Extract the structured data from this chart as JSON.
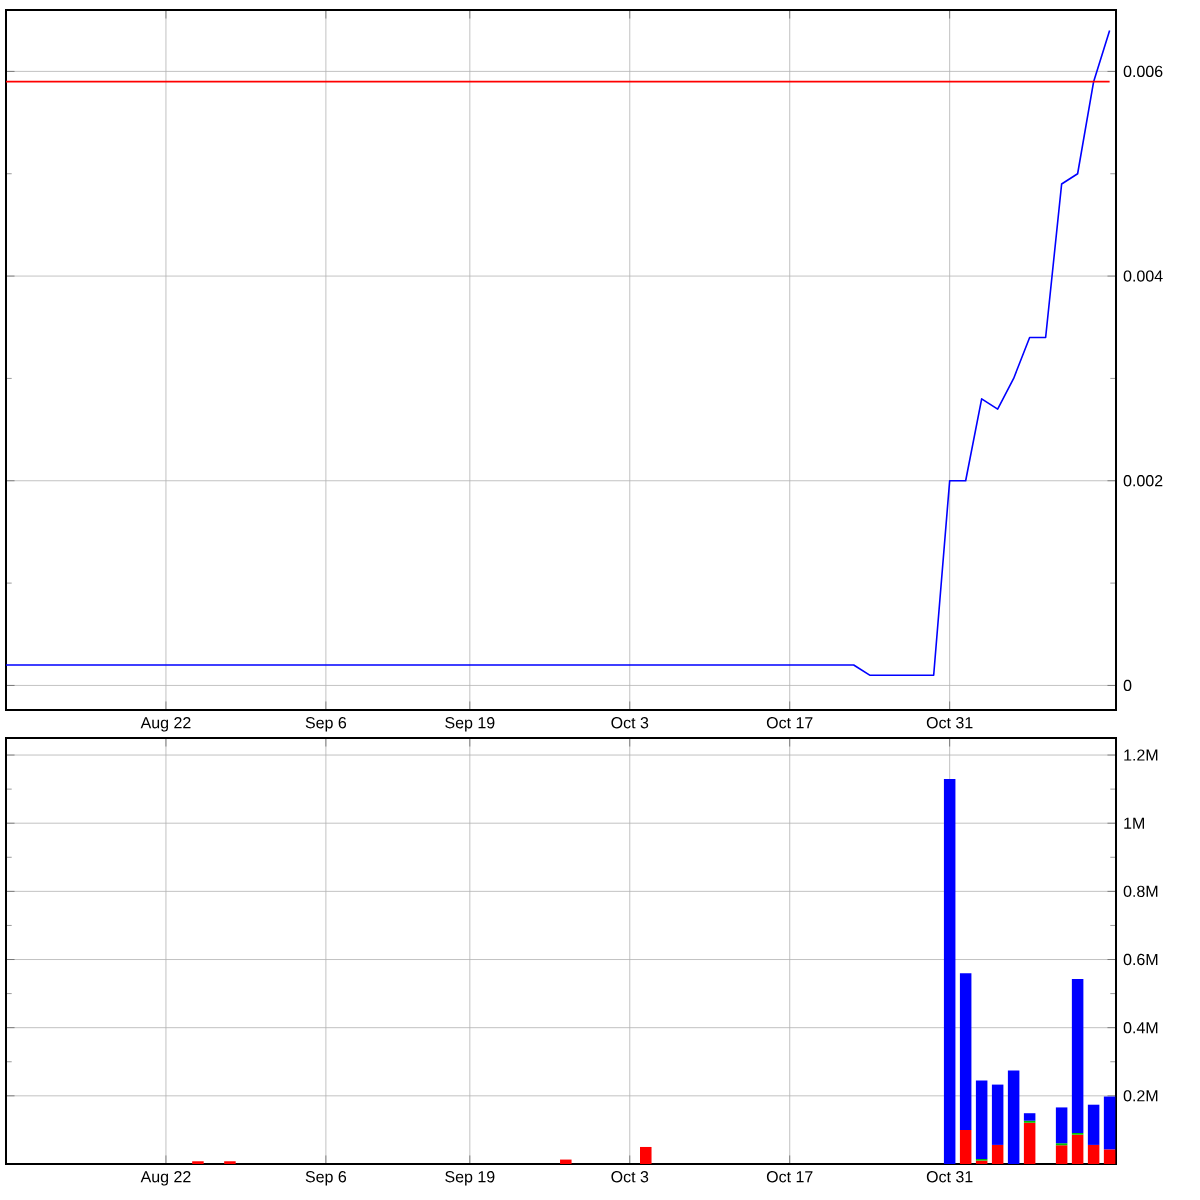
{
  "chart_data": [
    {
      "type": "line",
      "categories": [
        null,
        null,
        null,
        null,
        null,
        null,
        null,
        null,
        null,
        null,
        "Aug 22",
        null,
        null,
        null,
        null,
        null,
        null,
        null,
        null,
        null,
        "Sep 6",
        null,
        null,
        null,
        null,
        null,
        null,
        null,
        null,
        "Sep 19",
        null,
        null,
        null,
        null,
        null,
        null,
        null,
        null,
        null,
        "Oct 3",
        null,
        null,
        null,
        null,
        null,
        null,
        null,
        null,
        null,
        "Oct 17",
        null,
        null,
        null,
        null,
        null,
        null,
        null,
        null,
        null,
        "Oct 31",
        null,
        null,
        null,
        null,
        null,
        null,
        null,
        null,
        null,
        null
      ],
      "series": [
        {
          "color": "#0000ff",
          "values": [
            0.0002,
            0.0002,
            0.0002,
            0.0002,
            0.0002,
            0.0002,
            0.0002,
            0.0002,
            0.0002,
            0.0002,
            0.0002,
            0.0002,
            0.0002,
            0.0002,
            0.0002,
            0.0002,
            0.0002,
            0.0002,
            0.0002,
            0.0002,
            0.0002,
            0.0002,
            0.0002,
            0.0002,
            0.0002,
            0.0002,
            0.0002,
            0.0002,
            0.0002,
            0.0002,
            0.0002,
            0.0002,
            0.0002,
            0.0002,
            0.0002,
            0.0002,
            0.0002,
            0.0002,
            0.0002,
            0.0002,
            0.0002,
            0.0002,
            0.0002,
            0.0002,
            0.0002,
            0.0002,
            0.0002,
            0.0002,
            0.0002,
            0.0002,
            0.0002,
            0.0002,
            0.0002,
            0.0002,
            0.0001,
            0.0001,
            0.0001,
            0.0001,
            0.0001,
            0.002,
            0.002,
            0.0028,
            0.0027,
            0.003,
            0.0034,
            0.0034,
            0.0049,
            0.005,
            0.0059,
            0.0064
          ]
        }
      ],
      "ylim": [
        -0.00024,
        0.0066
      ],
      "yticks": [
        0,
        0.002,
        0.004,
        0.006
      ],
      "grid": true,
      "ref_lines": [
        {
          "axis": "y",
          "value": 0.0059,
          "color": "#ff0000"
        }
      ]
    },
    {
      "type": "bar",
      "stacked": true,
      "categories": [
        null,
        null,
        null,
        null,
        null,
        null,
        null,
        null,
        null,
        null,
        "Aug 22",
        null,
        null,
        null,
        null,
        null,
        null,
        null,
        null,
        null,
        "Sep 6",
        null,
        null,
        null,
        null,
        null,
        null,
        null,
        null,
        "Sep 19",
        null,
        null,
        null,
        null,
        null,
        null,
        null,
        null,
        null,
        "Oct 3",
        null,
        null,
        null,
        null,
        null,
        null,
        null,
        null,
        null,
        "Oct 17",
        null,
        null,
        null,
        null,
        null,
        null,
        null,
        null,
        null,
        "Oct 31",
        null,
        null,
        null,
        null,
        null,
        null,
        null,
        null,
        null,
        null
      ],
      "series": [
        {
          "color": "#ff0000",
          "values": [
            null,
            null,
            null,
            null,
            null,
            null,
            null,
            null,
            null,
            null,
            null,
            null,
            8000,
            null,
            8000,
            null,
            null,
            null,
            null,
            null,
            null,
            null,
            null,
            null,
            null,
            null,
            null,
            null,
            null,
            null,
            null,
            null,
            null,
            null,
            null,
            13000,
            null,
            null,
            null,
            null,
            50000,
            null,
            null,
            null,
            null,
            null,
            null,
            null,
            null,
            null,
            null,
            null,
            null,
            null,
            null,
            null,
            null,
            null,
            null,
            null,
            100000,
            10000,
            56000,
            null,
            121000,
            null,
            55000,
            86000,
            56000,
            43000
          ]
        },
        {
          "color": "#00c000",
          "values": [
            null,
            null,
            null,
            null,
            null,
            null,
            null,
            null,
            null,
            null,
            null,
            null,
            null,
            null,
            null,
            null,
            null,
            null,
            null,
            null,
            null,
            null,
            null,
            null,
            null,
            null,
            null,
            null,
            null,
            null,
            null,
            null,
            null,
            null,
            null,
            null,
            null,
            null,
            null,
            null,
            null,
            null,
            null,
            null,
            null,
            null,
            null,
            null,
            null,
            null,
            null,
            null,
            null,
            null,
            null,
            null,
            null,
            null,
            null,
            null,
            null,
            5000,
            null,
            null,
            6000,
            null,
            6000,
            5000,
            null,
            null
          ]
        },
        {
          "color": "#0000ff",
          "values": [
            null,
            null,
            null,
            null,
            null,
            null,
            null,
            null,
            null,
            null,
            null,
            null,
            null,
            null,
            null,
            null,
            null,
            null,
            null,
            null,
            null,
            null,
            null,
            null,
            null,
            null,
            null,
            null,
            null,
            null,
            null,
            null,
            null,
            null,
            null,
            null,
            null,
            null,
            null,
            null,
            null,
            null,
            null,
            null,
            null,
            null,
            null,
            null,
            null,
            null,
            null,
            null,
            null,
            null,
            null,
            null,
            null,
            null,
            null,
            1130000,
            460000,
            230000,
            177000,
            274000,
            22000,
            null,
            105000,
            452000,
            118000,
            155000
          ]
        }
      ],
      "ylim": [
        0,
        1250000
      ],
      "yticks": [
        {
          "value": 200000,
          "label": "0.2M"
        },
        {
          "value": 400000,
          "label": "0.4M"
        },
        {
          "value": 600000,
          "label": "0.6M"
        },
        {
          "value": 800000,
          "label": "0.8M"
        },
        {
          "value": 1000000,
          "label": "1M"
        },
        {
          "value": 1200000,
          "label": "1.2M"
        }
      ],
      "grid": true
    }
  ]
}
